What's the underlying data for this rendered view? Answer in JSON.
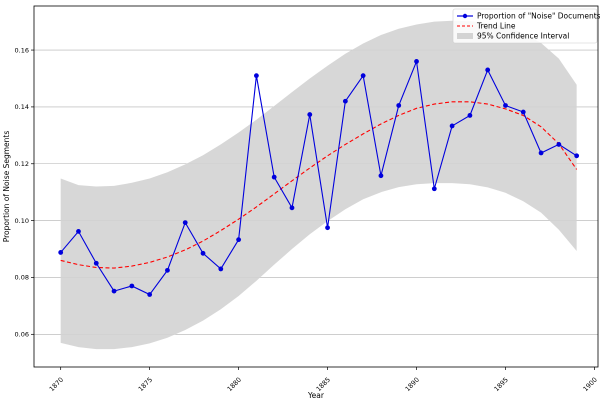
{
  "chart_data": {
    "type": "line",
    "title": "",
    "xlabel": "Year",
    "ylabel": "Proportion of Noise Segments",
    "xlim": [
      1868.5,
      1900.2
    ],
    "ylim": [
      0.0485,
      0.1755
    ],
    "x_ticks": [
      1870,
      1875,
      1880,
      1885,
      1890,
      1895,
      1900
    ],
    "y_ticks": [
      0.06,
      0.08,
      0.1,
      0.12,
      0.14,
      0.16
    ],
    "x_tick_labels": [
      "1870",
      "1875",
      "1880",
      "1885",
      "1890",
      "1895",
      "1900"
    ],
    "y_tick_labels": [
      "0.06",
      "0.08",
      "0.10",
      "0.12",
      "0.14",
      "0.16"
    ],
    "grid": "horizontal",
    "legend_position": "top-right",
    "series": [
      {
        "name": "Proportion of \"Noise\" Documents",
        "style": "line-marker",
        "color": "#0000dd",
        "x": [
          1870,
          1871,
          1872,
          1873,
          1874,
          1875,
          1876,
          1877,
          1878,
          1879,
          1880,
          1881,
          1882,
          1883,
          1884,
          1885,
          1886,
          1887,
          1888,
          1889,
          1890,
          1891,
          1892,
          1893,
          1894,
          1895,
          1896,
          1897,
          1898,
          1899
        ],
        "values": [
          0.0888,
          0.0962,
          0.085,
          0.0752,
          0.077,
          0.074,
          0.0825,
          0.0993,
          0.0885,
          0.083,
          0.0933,
          0.151,
          0.1153,
          0.1045,
          0.1373,
          0.0975,
          0.142,
          0.151,
          0.1158,
          0.1405,
          0.156,
          0.1112,
          0.1333,
          0.137,
          0.153,
          0.1405,
          0.1382,
          0.1238,
          0.1268,
          0.1228
        ]
      },
      {
        "name": "Trend Line",
        "style": "dashed",
        "color": "#ff0000",
        "x": [
          1870,
          1871,
          1872,
          1873,
          1874,
          1875,
          1876,
          1877,
          1878,
          1879,
          1880,
          1881,
          1882,
          1883,
          1884,
          1885,
          1886,
          1887,
          1888,
          1889,
          1890,
          1891,
          1892,
          1893,
          1894,
          1895,
          1896,
          1897,
          1898,
          1899
        ],
        "values": [
          0.086,
          0.0845,
          0.0835,
          0.0833,
          0.084,
          0.0853,
          0.0872,
          0.0897,
          0.0928,
          0.0965,
          0.1005,
          0.1048,
          0.1094,
          0.114,
          0.1185,
          0.1228,
          0.1268,
          0.1305,
          0.134,
          0.137,
          0.1395,
          0.141,
          0.1418,
          0.1418,
          0.141,
          0.1393,
          0.137,
          0.133,
          0.127,
          0.118
        ]
      },
      {
        "name": "95% Confidence Interval",
        "style": "band",
        "color": "#d3d3d3",
        "x": [
          1870,
          1871,
          1872,
          1873,
          1874,
          1875,
          1876,
          1877,
          1878,
          1879,
          1880,
          1881,
          1882,
          1883,
          1884,
          1885,
          1886,
          1887,
          1888,
          1889,
          1890,
          1891,
          1892,
          1893,
          1894,
          1895,
          1896,
          1897,
          1898,
          1899
        ],
        "lower": [
          0.057,
          0.0555,
          0.0548,
          0.0548,
          0.0555,
          0.0568,
          0.0588,
          0.0615,
          0.0648,
          0.0688,
          0.0735,
          0.0788,
          0.0845,
          0.09,
          0.0952,
          0.0998,
          0.104,
          0.1075,
          0.11,
          0.1118,
          0.1128,
          0.1132,
          0.1132,
          0.1128,
          0.1117,
          0.1098,
          0.1068,
          0.1028,
          0.0968,
          0.0893
        ],
        "upper": [
          0.1148,
          0.1125,
          0.112,
          0.1122,
          0.1133,
          0.1148,
          0.117,
          0.1198,
          0.123,
          0.1268,
          0.131,
          0.1355,
          0.1403,
          0.1452,
          0.15,
          0.1545,
          0.1587,
          0.1623,
          0.1653,
          0.1675,
          0.169,
          0.17,
          0.1703,
          0.1702,
          0.1695,
          0.1682,
          0.166,
          0.1625,
          0.157,
          0.1478
        ]
      }
    ]
  }
}
